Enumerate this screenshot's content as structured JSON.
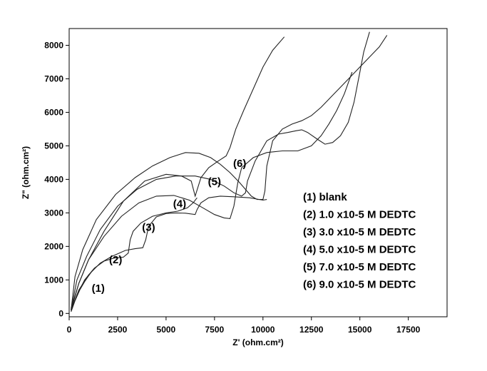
{
  "chart_data": {
    "type": "line",
    "title": "",
    "xlabel": "Z' (ohm.cm²)",
    "ylabel": "Z\" (ohm.cm²)",
    "xlim": [
      0,
      19500
    ],
    "ylim": [
      -100,
      8500
    ],
    "x_ticks": [
      0,
      2500,
      5000,
      7500,
      10000,
      12500,
      15000,
      17500
    ],
    "y_ticks": [
      0,
      1000,
      2000,
      3000,
      4000,
      5000,
      6000,
      7000,
      8000
    ],
    "grid": false,
    "legend_position": "right",
    "legend": [
      "(1) blank",
      "(2) 1.0 x10-5 M DEDTC",
      "(3) 3.0 x10-5 M DEDTC",
      "(4) 5.0 x10-5 M DEDTC",
      "(5) 7.0 x10-5 M DEDTC",
      "(6) 9.0 x10-5 M DEDTC"
    ],
    "series": [
      {
        "label": "(1)",
        "label_at": [
          1500,
          650
        ],
        "x": [
          100,
          300,
          550,
          800,
          1000,
          1200
        ],
        "y": [
          50,
          380,
          700,
          950,
          1120,
          1280
        ]
      },
      {
        "label": "(2)",
        "label_at": [
          2400,
          1500
        ],
        "x": [
          100,
          400,
          800,
          1300,
          1800,
          2300,
          2800,
          3050,
          3150,
          3300,
          3700,
          4300,
          5000,
          5600,
          6100,
          6400,
          6600
        ],
        "y": [
          80,
          550,
          1000,
          1350,
          1560,
          1650,
          1680,
          1800,
          2200,
          2450,
          2700,
          2900,
          3000,
          3050,
          3150,
          3300,
          3450
        ]
      },
      {
        "label": "(3)",
        "label_at": [
          4100,
          2460
        ],
        "x": [
          100,
          500,
          1000,
          1600,
          2200,
          2900,
          3400,
          3800,
          3950,
          4100,
          4500,
          5000,
          5500,
          6000,
          6500,
          6600,
          6800,
          7200,
          7800,
          8500,
          9300,
          10000,
          10200
        ],
        "y": [
          100,
          700,
          1150,
          1500,
          1700,
          1880,
          1930,
          1960,
          2200,
          2600,
          2880,
          2980,
          3000,
          2990,
          2950,
          3100,
          3300,
          3450,
          3500,
          3480,
          3450,
          3380,
          3400
        ]
      },
      {
        "label": "(4)",
        "label_at": [
          5700,
          3170
        ],
        "x": [
          100,
          500,
          1000,
          1800,
          2700,
          3600,
          4500,
          5400,
          6200,
          6900,
          7500,
          8000,
          8300,
          8500,
          8700,
          8900,
          9500,
          10200,
          11000,
          11800,
          12500,
          13000,
          13400,
          13800,
          14200,
          14600
        ],
        "y": [
          100,
          900,
          1600,
          2300,
          2900,
          3300,
          3500,
          3520,
          3380,
          3150,
          2950,
          2850,
          2830,
          3200,
          3900,
          4350,
          4650,
          4800,
          4850,
          4850,
          5000,
          5300,
          5650,
          6050,
          6550,
          7200
        ]
      },
      {
        "label": "(5)",
        "label_at": [
          7500,
          3830
        ],
        "x": [
          100,
          400,
          900,
          1600,
          2500,
          3500,
          4500,
          5500,
          6500,
          7300,
          8000,
          8500,
          8900,
          9100,
          9200,
          9600,
          10200,
          10800,
          11300,
          11700,
          12000,
          12300,
          12800,
          13200,
          13600,
          14000,
          14400,
          14700,
          15000,
          15200,
          15500
        ],
        "y": [
          100,
          1000,
          1700,
          2500,
          3200,
          3700,
          4000,
          4100,
          4100,
          4000,
          3800,
          3600,
          3500,
          3600,
          3950,
          4550,
          5150,
          5350,
          5400,
          5450,
          5480,
          5400,
          5200,
          5050,
          5100,
          5300,
          5700,
          6300,
          7200,
          7800,
          8400
        ]
      },
      {
        "label": "(6)",
        "label_at": [
          8800,
          4370
        ],
        "x": [
          100,
          300,
          700,
          1400,
          2400,
          3400,
          4300,
          5200,
          6000,
          6700,
          7300,
          7800,
          8300,
          8800,
          9100,
          9400,
          9700,
          10000,
          10100,
          10200,
          10500,
          11000,
          11500,
          12000,
          12500,
          13000,
          13500,
          14000,
          14500,
          15000,
          15500,
          16000,
          16400
        ],
        "y": [
          100,
          1100,
          1900,
          2800,
          3550,
          4050,
          4400,
          4650,
          4800,
          4780,
          4650,
          4450,
          4200,
          3900,
          3700,
          3500,
          3400,
          3400,
          3650,
          4400,
          5150,
          5500,
          5650,
          5750,
          5900,
          6150,
          6450,
          6750,
          7050,
          7350,
          7650,
          7950,
          8300
        ]
      },
      {
        "label": "",
        "label_at": null,
        "x": [
          100,
          500,
          1000,
          1800,
          2800,
          3900,
          5000,
          5800,
          6300,
          6500,
          6800,
          7200,
          7700,
          8100,
          8300,
          8600,
          9000,
          9500,
          10000,
          10500,
          11100
        ],
        "y": [
          150,
          900,
          1600,
          2450,
          3350,
          3950,
          4150,
          4100,
          3950,
          3500,
          4050,
          4350,
          4550,
          4700,
          4950,
          5500,
          6050,
          6700,
          7350,
          7850,
          8250
        ]
      }
    ]
  }
}
